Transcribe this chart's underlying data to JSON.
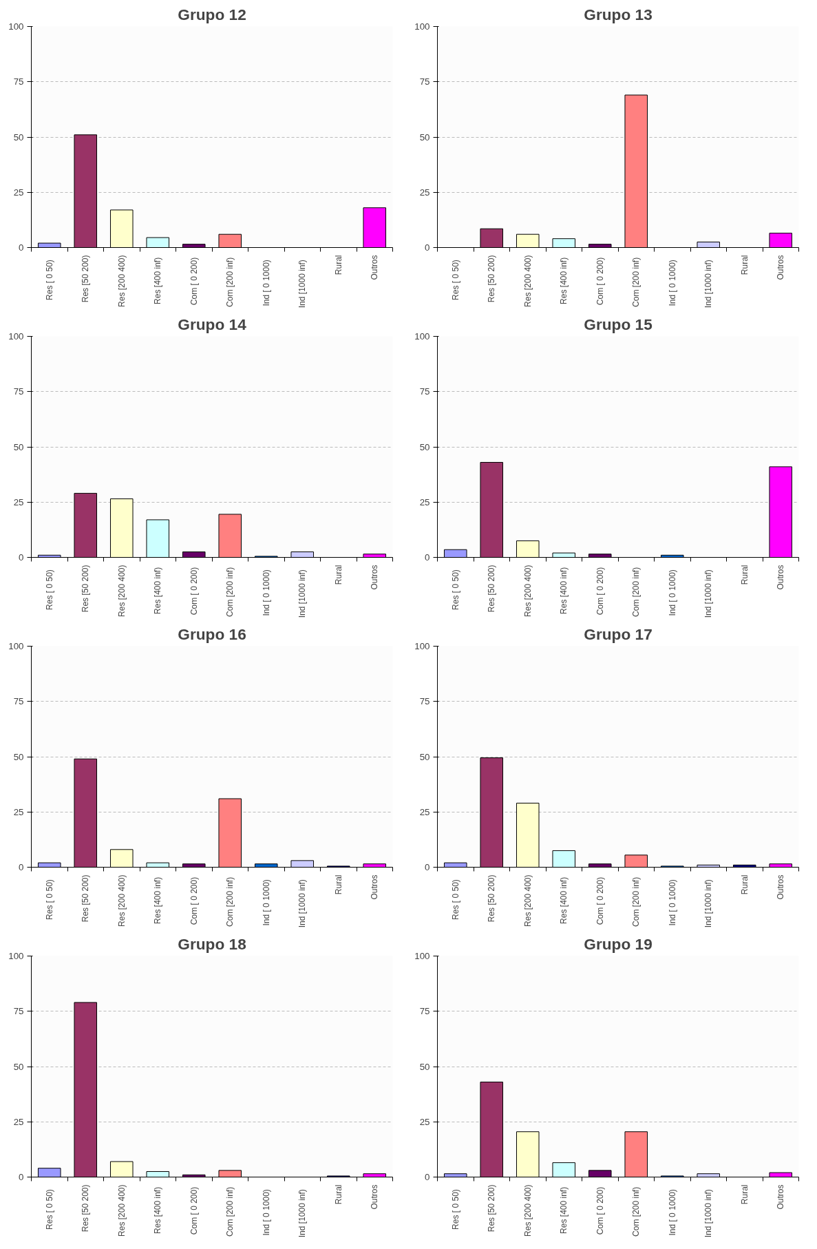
{
  "chart_data": [
    {
      "type": "bar",
      "title": "Grupo 12",
      "categories": [
        "Res [  0  50)",
        "Res [50 200)",
        "Res [200 400)",
        "Res [400  inf)",
        "Com [  0 200)",
        "Com [200  inf)",
        "Ind  [  0 1000)",
        "Ind  [1000  inf)",
        "Rural",
        "Outros"
      ],
      "values": [
        2,
        51,
        17,
        4.5,
        1.5,
        6,
        0,
        0,
        0,
        18
      ],
      "colors": [
        "#9999ff",
        "#993366",
        "#ffffcc",
        "#ccffff",
        "#660066",
        "#ff8080",
        "#0066cc",
        "#ccccff",
        "#000080",
        "#ff00ff"
      ],
      "ylim": [
        0,
        100
      ],
      "yticks": [
        0,
        25,
        50,
        75,
        100
      ],
      "grid": "y",
      "legend": false
    },
    {
      "type": "bar",
      "title": "Grupo 13",
      "categories": [
        "Res [  0  50)",
        "Res [50 200)",
        "Res [200 400)",
        "Res [400  inf)",
        "Com [  0 200)",
        "Com [200  inf)",
        "Ind  [  0 1000)",
        "Ind  [1000  inf)",
        "Rural",
        "Outros"
      ],
      "values": [
        0,
        8.5,
        6,
        4,
        1.5,
        69,
        0,
        2.5,
        0,
        6.5
      ],
      "colors": [
        "#9999ff",
        "#993366",
        "#ffffcc",
        "#ccffff",
        "#660066",
        "#ff8080",
        "#0066cc",
        "#ccccff",
        "#000080",
        "#ff00ff"
      ],
      "ylim": [
        0,
        100
      ],
      "yticks": [
        0,
        25,
        50,
        75,
        100
      ],
      "grid": "y",
      "legend": false
    },
    {
      "type": "bar",
      "title": "Grupo 14",
      "categories": [
        "Res [  0  50)",
        "Res [50 200)",
        "Res [200 400)",
        "Res [400  inf)",
        "Com [  0 200)",
        "Com [200  inf)",
        "Ind  [  0 1000)",
        "Ind  [1000  inf)",
        "Rural",
        "Outros"
      ],
      "values": [
        1,
        29,
        26.5,
        17,
        2.5,
        19.5,
        0.5,
        2.5,
        0,
        1.5
      ],
      "colors": [
        "#9999ff",
        "#993366",
        "#ffffcc",
        "#ccffff",
        "#660066",
        "#ff8080",
        "#0066cc",
        "#ccccff",
        "#000080",
        "#ff00ff"
      ],
      "ylim": [
        0,
        100
      ],
      "yticks": [
        0,
        25,
        50,
        75,
        100
      ],
      "grid": "y",
      "legend": false
    },
    {
      "type": "bar",
      "title": "Grupo 15",
      "categories": [
        "Res [  0  50)",
        "Res [50 200)",
        "Res [200 400)",
        "Res [400  inf)",
        "Com [  0 200)",
        "Com [200  inf)",
        "Ind  [  0 1000)",
        "Ind  [1000  inf)",
        "Rural",
        "Outros"
      ],
      "values": [
        3.5,
        43,
        7.5,
        2,
        1.5,
        0,
        1,
        0,
        0,
        41
      ],
      "colors": [
        "#9999ff",
        "#993366",
        "#ffffcc",
        "#ccffff",
        "#660066",
        "#ff8080",
        "#0066cc",
        "#ccccff",
        "#000080",
        "#ff00ff"
      ],
      "ylim": [
        0,
        100
      ],
      "yticks": [
        0,
        25,
        50,
        75,
        100
      ],
      "grid": "y",
      "legend": false
    },
    {
      "type": "bar",
      "title": "Grupo 16",
      "categories": [
        "Res [  0  50)",
        "Res [50 200)",
        "Res [200 400)",
        "Res [400  inf)",
        "Com [  0 200)",
        "Com [200  inf)",
        "Ind  [  0 1000)",
        "Ind  [1000  inf)",
        "Rural",
        "Outros"
      ],
      "values": [
        2,
        49,
        8,
        2,
        1.5,
        31,
        1.5,
        3,
        0.5,
        1.5
      ],
      "colors": [
        "#9999ff",
        "#993366",
        "#ffffcc",
        "#ccffff",
        "#660066",
        "#ff8080",
        "#0066cc",
        "#ccccff",
        "#000080",
        "#ff00ff"
      ],
      "ylim": [
        0,
        100
      ],
      "yticks": [
        0,
        25,
        50,
        75,
        100
      ],
      "grid": "y",
      "legend": false
    },
    {
      "type": "bar",
      "title": "Grupo 17",
      "categories": [
        "Res [  0  50)",
        "Res [50 200)",
        "Res [200 400)",
        "Res [400  inf)",
        "Com [  0 200)",
        "Com [200  inf)",
        "Ind  [  0 1000)",
        "Ind  [1000  inf)",
        "Rural",
        "Outros"
      ],
      "values": [
        2,
        49.5,
        29,
        7.5,
        1.5,
        5.5,
        0.5,
        1,
        1,
        1.5
      ],
      "colors": [
        "#9999ff",
        "#993366",
        "#ffffcc",
        "#ccffff",
        "#660066",
        "#ff8080",
        "#0066cc",
        "#ccccff",
        "#000080",
        "#ff00ff"
      ],
      "ylim": [
        0,
        100
      ],
      "yticks": [
        0,
        25,
        50,
        75,
        100
      ],
      "grid": "y",
      "legend": false
    },
    {
      "type": "bar",
      "title": "Grupo 18",
      "categories": [
        "Res [  0  50)",
        "Res [50 200)",
        "Res [200 400)",
        "Res [400  inf)",
        "Com [  0 200)",
        "Com [200  inf)",
        "Ind  [  0 1000)",
        "Ind  [1000  inf)",
        "Rural",
        "Outros"
      ],
      "values": [
        4,
        79,
        7,
        2.5,
        1,
        3,
        0,
        0,
        0.5,
        1.5
      ],
      "colors": [
        "#9999ff",
        "#993366",
        "#ffffcc",
        "#ccffff",
        "#660066",
        "#ff8080",
        "#0066cc",
        "#ccccff",
        "#000080",
        "#ff00ff"
      ],
      "ylim": [
        0,
        100
      ],
      "yticks": [
        0,
        25,
        50,
        75,
        100
      ],
      "grid": "y",
      "legend": false
    },
    {
      "type": "bar",
      "title": "Grupo 19",
      "categories": [
        "Res [  0  50)",
        "Res [50 200)",
        "Res [200 400)",
        "Res [400  inf)",
        "Com [  0 200)",
        "Com [200  inf)",
        "Ind  [  0 1000)",
        "Ind  [1000  inf)",
        "Rural",
        "Outros"
      ],
      "values": [
        1.5,
        43,
        20.5,
        6.5,
        3,
        20.5,
        0.5,
        1.5,
        0,
        2
      ],
      "colors": [
        "#9999ff",
        "#993366",
        "#ffffcc",
        "#ccffff",
        "#660066",
        "#ff8080",
        "#0066cc",
        "#ccccff",
        "#000080",
        "#ff00ff"
      ],
      "ylim": [
        0,
        100
      ],
      "yticks": [
        0,
        25,
        50,
        75,
        100
      ],
      "grid": "y",
      "legend": false
    }
  ]
}
